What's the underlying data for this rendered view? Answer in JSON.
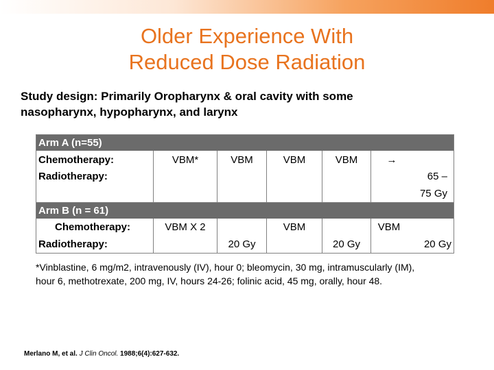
{
  "colors": {
    "title": "#e8731e",
    "band": "#6b6b6b",
    "band_accent": "#4472c4"
  },
  "title": {
    "line1": "Older Experience With",
    "line2": "Reduced Dose Radiation"
  },
  "study_design": {
    "line1": "Study design: Primarily Oropharynx & oral cavity with some",
    "line2": "nasopharynx, hypopharynx, and larynx"
  },
  "table": {
    "arm_a": {
      "label": "Arm A (n=55)",
      "chemo_label": "Chemotherapy:",
      "radio_label": "Radiotherapy:",
      "chemo": [
        "VBM*",
        "VBM",
        "VBM",
        "VBM",
        "→"
      ],
      "radio_line1": "65 –",
      "radio_line2": "75 Gy"
    },
    "arm_b": {
      "label": "Arm B (n = 61)",
      "chemo_label": "Chemotherapy:",
      "radio_label": "Radiotherapy:",
      "chemo": [
        "VBM X 2",
        "VBM",
        "VBM"
      ],
      "radio": [
        "20 Gy",
        "20 Gy",
        "20 Gy"
      ]
    }
  },
  "footnote": {
    "line1": "*Vinblastine, 6 mg/m2, intravenously (IV), hour 0; bleomycin, 30 mg, intramuscularly (IM),",
    "line2": "hour 6, methotrexate, 200 mg, IV, hours 24-26; folinic acid, 45 mg, orally, hour 48."
  },
  "citation": {
    "authors": "Merlano M, et al.",
    "journal": "J Clin Oncol.",
    "details": "1988;6(4):627-632."
  }
}
